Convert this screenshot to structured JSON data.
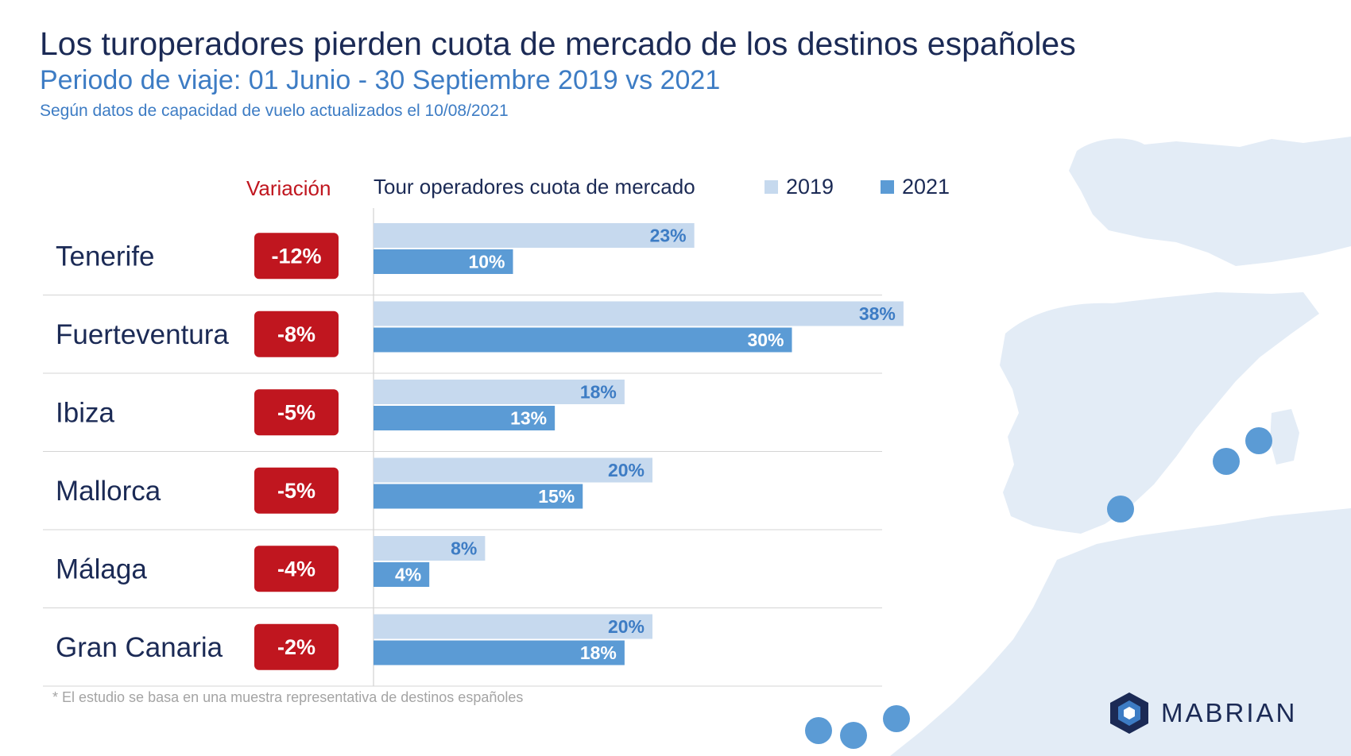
{
  "title": "Los turoperadores pierden cuota de mercado de los destinos españoles",
  "subtitle": "Periodo de viaje: 01 Junio - 30 Septiembre 2019 vs 2021",
  "source_note": "Según datos de capacidad de vuelo actualizados el 10/08/2021",
  "variation_header": "Variación",
  "chart_header": "Tour operadores cuota de mercado",
  "footnote": "* El estudio se basa en una muestra representativa de destinos españoles",
  "logo": {
    "name": "MABRIAN",
    "icon": "mabrian-hexagon-logo"
  },
  "colors": {
    "title": "#1b2a55",
    "subtitle": "#3d7cc4",
    "variation_badge": "#c0161f",
    "series_2019": "#c6d9ee",
    "series_2021": "#5b9bd5",
    "map": "#e3ecf6",
    "map_dot": "#5b9bd5"
  },
  "chart_data": {
    "type": "bar",
    "orientation": "horizontal",
    "unit": "%",
    "categories": [
      "Tenerife",
      "Fuerteventura",
      "Ibiza",
      "Mallorca",
      "Málaga",
      "Gran Canaria"
    ],
    "series": [
      {
        "name": "2019",
        "values": [
          23,
          38,
          18,
          20,
          8,
          20
        ],
        "labels": [
          "23%",
          "38%",
          "18%",
          "20%",
          "8%",
          "20%"
        ]
      },
      {
        "name": "2021",
        "values": [
          10,
          30,
          13,
          15,
          4,
          18
        ],
        "labels": [
          "10%",
          "30%",
          "13%",
          "15%",
          "4%",
          "18%"
        ]
      }
    ],
    "variation": [
      "-12%",
      "-8%",
      "-5%",
      "-5%",
      "-4%",
      "-2%"
    ],
    "legend_position": "top",
    "grid": false
  }
}
